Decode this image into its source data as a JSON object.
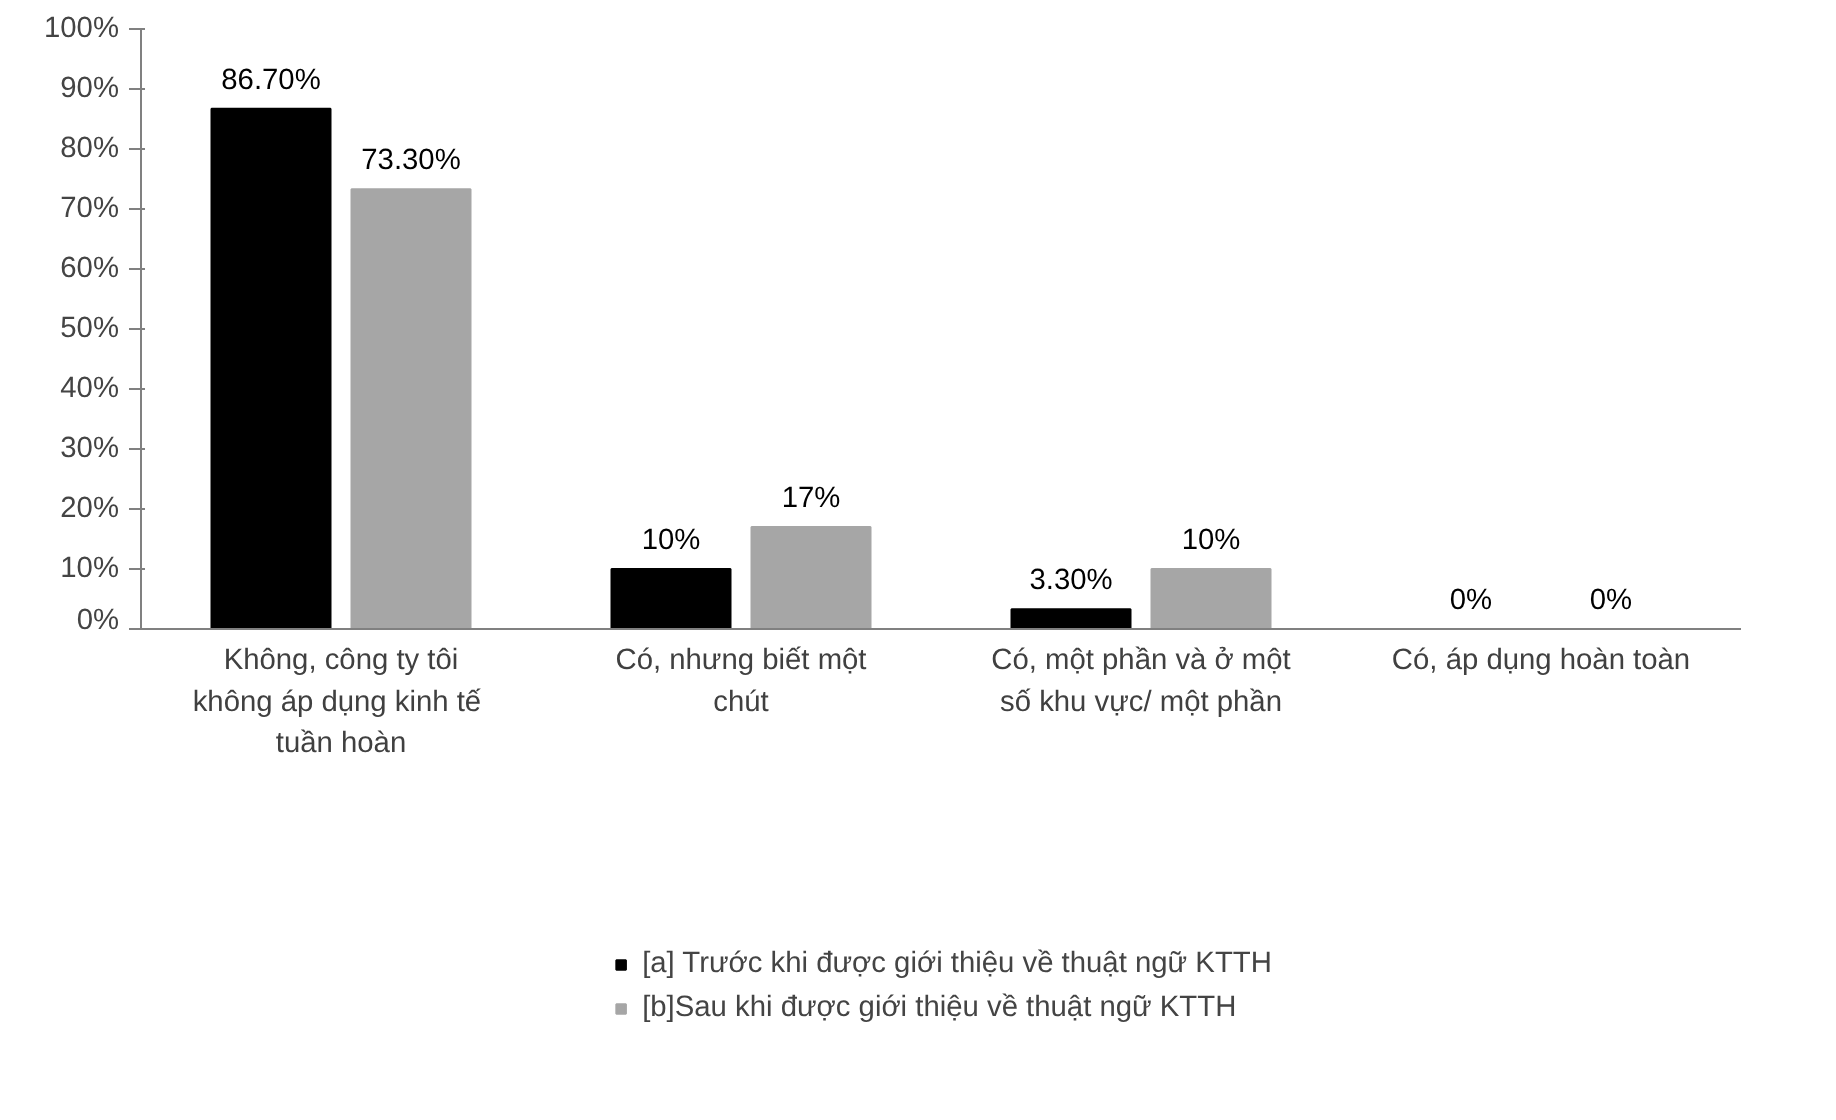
{
  "chart_data": {
    "type": "bar",
    "categories": [
      "Không, công ty tôi không áp dụng  kinh tế tuần hoàn",
      "Có, nhưng biết một chút",
      "Có, một phần và ở một số khu vực/ một phần",
      "Có, áp dụng hoàn toàn"
    ],
    "series": [
      {
        "name": "[a] Trước khi được giới thiệu về thuật ngữ KTTH",
        "color": "#000000",
        "values": [
          86.7,
          10,
          3.3,
          0
        ],
        "value_labels": [
          "86.70%",
          "10%",
          "3.30%",
          "0%"
        ]
      },
      {
        "name": "[b]Sau khi được giới thiệu về thuật ngữ KTTH",
        "color": "#a6a6a6",
        "values": [
          73.3,
          17,
          10,
          0
        ],
        "value_labels": [
          "73.30%",
          "17%",
          "10%",
          "0%"
        ]
      }
    ],
    "ylim": [
      0,
      100
    ],
    "yticks": [
      {
        "value": 0,
        "label": "0%"
      },
      {
        "value": 10,
        "label": "10%"
      },
      {
        "value": 20,
        "label": "20%"
      },
      {
        "value": 30,
        "label": "30%"
      },
      {
        "value": 40,
        "label": "40%"
      },
      {
        "value": 50,
        "label": "50%"
      },
      {
        "value": 60,
        "label": "60%"
      },
      {
        "value": 70,
        "label": "70%"
      },
      {
        "value": 80,
        "label": "80%"
      },
      {
        "value": 90,
        "label": "90%"
      },
      {
        "value": 100,
        "label": "100%"
      }
    ],
    "grid": false,
    "legend": "bottom"
  }
}
